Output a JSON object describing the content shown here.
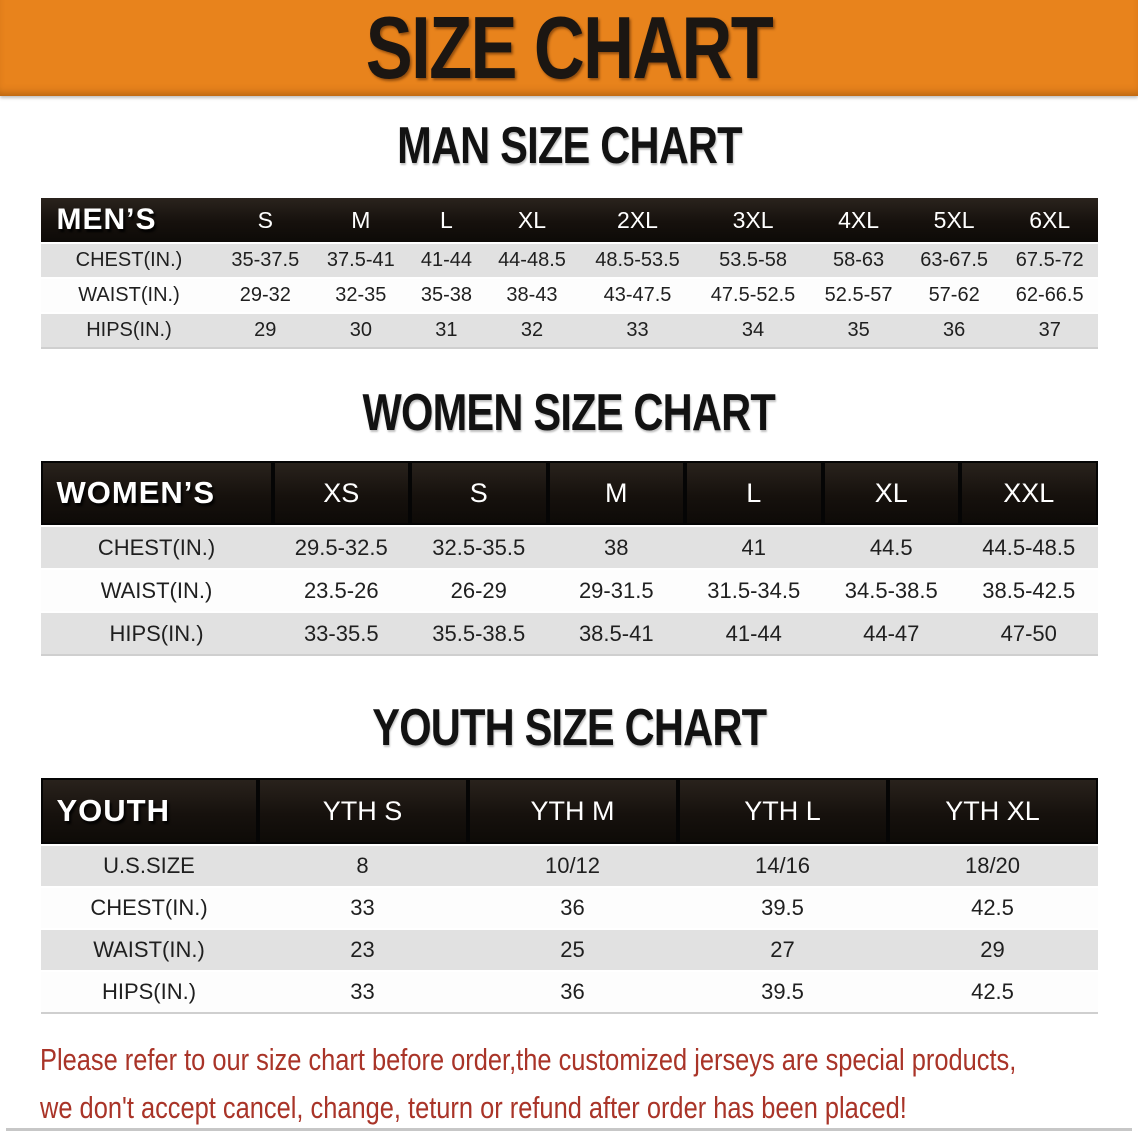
{
  "banner": {
    "title": "SIZE CHART",
    "bg_color": "#E8831C",
    "text_color": "#1B1612"
  },
  "sections": {
    "men": {
      "title": "MAN SIZE CHART",
      "header_label": "MEN’S",
      "sizes": [
        "S",
        "M",
        "L",
        "XL",
        "2XL",
        "3XL",
        "4XL",
        "5XL",
        "6XL"
      ],
      "rows": [
        {
          "label": "CHEST(IN.)",
          "values": [
            "35-37.5",
            "37.5-41",
            "41-44",
            "44-48.5",
            "48.5-53.5",
            "53.5-58",
            "58-63",
            "63-67.5",
            "67.5-72"
          ]
        },
        {
          "label": "WAIST(IN.)",
          "values": [
            "29-32",
            "32-35",
            "35-38",
            "38-43",
            "43-47.5",
            "47.5-52.5",
            "52.5-57",
            "57-62",
            "62-66.5"
          ]
        },
        {
          "label": "HIPS(IN.)",
          "values": [
            "29",
            "30",
            "31",
            "32",
            "33",
            "34",
            "35",
            "36",
            "37"
          ]
        }
      ]
    },
    "women": {
      "title": "WOMEN SIZE CHART",
      "header_label": "WOMEN’S",
      "sizes": [
        "XS",
        "S",
        "M",
        "L",
        "XL",
        "XXL"
      ],
      "rows": [
        {
          "label": "CHEST(IN.)",
          "values": [
            "29.5-32.5",
            "32.5-35.5",
            "38",
            "41",
            "44.5",
            "44.5-48.5"
          ]
        },
        {
          "label": "WAIST(IN.)",
          "values": [
            "23.5-26",
            "26-29",
            "29-31.5",
            "31.5-34.5",
            "34.5-38.5",
            "38.5-42.5"
          ]
        },
        {
          "label": "HIPS(IN.)",
          "values": [
            "33-35.5",
            "35.5-38.5",
            "38.5-41",
            "41-44",
            "44-47",
            "47-50"
          ]
        }
      ]
    },
    "youth": {
      "title": "YOUTH SIZE CHART",
      "header_label": "YOUTH",
      "sizes": [
        "YTH S",
        "YTH M",
        "YTH L",
        "YTH XL"
      ],
      "rows": [
        {
          "label": "U.S.SIZE",
          "values": [
            "8",
            "10/12",
            "14/16",
            "18/20"
          ]
        },
        {
          "label": "CHEST(IN.)",
          "values": [
            "33",
            "36",
            "39.5",
            "42.5"
          ]
        },
        {
          "label": "WAIST(IN.)",
          "values": [
            "23",
            "25",
            "27",
            "29"
          ]
        },
        {
          "label": "HIPS(IN.)",
          "values": [
            "33",
            "36",
            "39.5",
            "42.5"
          ]
        }
      ]
    }
  },
  "disclaimer": {
    "color": "#A93428",
    "lines": [
      "Please refer to our size chart before order,the customized jerseys are special products,",
      "we don't accept cancel, change, teturn or refund after order has been placed!"
    ]
  },
  "style_colors": {
    "band_black": "#1A1512",
    "stripe_gray": "#E1E1E1"
  }
}
